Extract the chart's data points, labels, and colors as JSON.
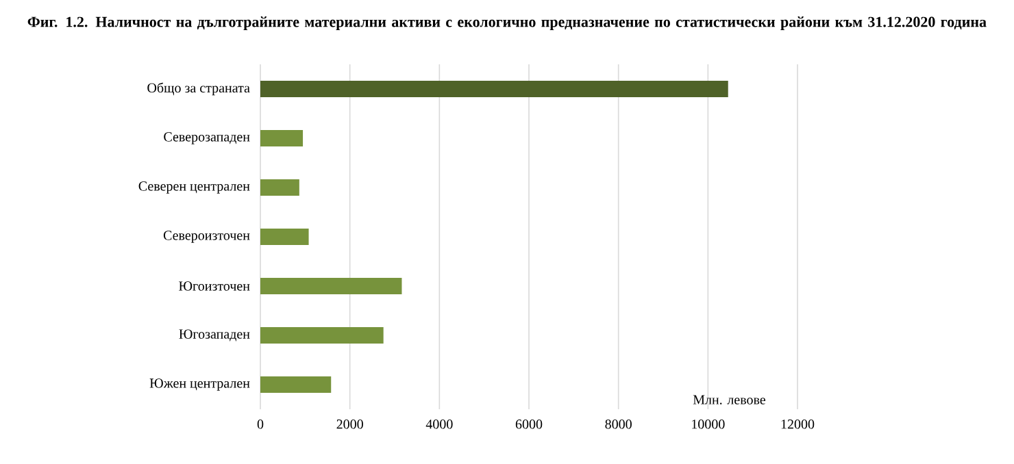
{
  "chart_data": {
    "type": "bar",
    "orientation": "horizontal",
    "title": "Фиг. 1.2. Наличност на дълготрайните материални активи с екологично предназначение по статистически райони към 31.12.2020 година",
    "categories": [
      "Общо за страната",
      "Северозападен",
      "Северен централен",
      "Североизточен",
      "Югоизточен",
      "Югозападен",
      "Южен централен"
    ],
    "values": [
      10450,
      950,
      870,
      1080,
      3160,
      2750,
      1580
    ],
    "colors": [
      "#4f6228",
      "#77933c",
      "#77933c",
      "#77933c",
      "#77933c",
      "#77933c",
      "#77933c"
    ],
    "xlabel": "Млн. левове",
    "xlim": [
      0,
      12000
    ],
    "xticks": [
      0,
      2000,
      4000,
      6000,
      8000,
      10000,
      12000
    ],
    "grid": "x"
  }
}
